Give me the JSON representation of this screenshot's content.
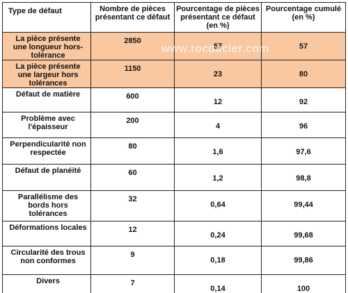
{
  "watermark": "www.rocdacier.com",
  "table": {
    "headers": [
      "Type de défaut",
      "Nombre de pièces présentant ce défaut",
      "Pourcentage de pièces présentant ce défaut (en %)",
      "Pourcentage cumulé (en %)"
    ],
    "rows": [
      [
        "La pièce présente une longueur hors-tolérance",
        "2850",
        "57",
        "57"
      ],
      [
        "La pièce présente une largeur hors tolérances",
        "1150",
        "23",
        "80"
      ],
      [
        "Défaut de matière",
        "600",
        "12",
        "92"
      ],
      [
        "Problème avec l'épaisseur",
        "200",
        "4",
        "96"
      ],
      [
        "Perpendicularité non respectée",
        "80",
        "1,6",
        "97,6"
      ],
      [
        "Défaut de planéité",
        "60",
        "1,2",
        "98,8"
      ],
      [
        "Parallélisme des bords hors tolérances",
        "32",
        "0,64",
        "99,44"
      ],
      [
        "Déformations locales",
        "12",
        "0,24",
        "99,68"
      ],
      [
        "Circularité des trous non conformes",
        "9",
        "0,18",
        "99,86"
      ],
      [
        "Divers",
        "7",
        "0,14",
        "100"
      ]
    ],
    "highlighted_rows": [
      0,
      1
    ]
  }
}
